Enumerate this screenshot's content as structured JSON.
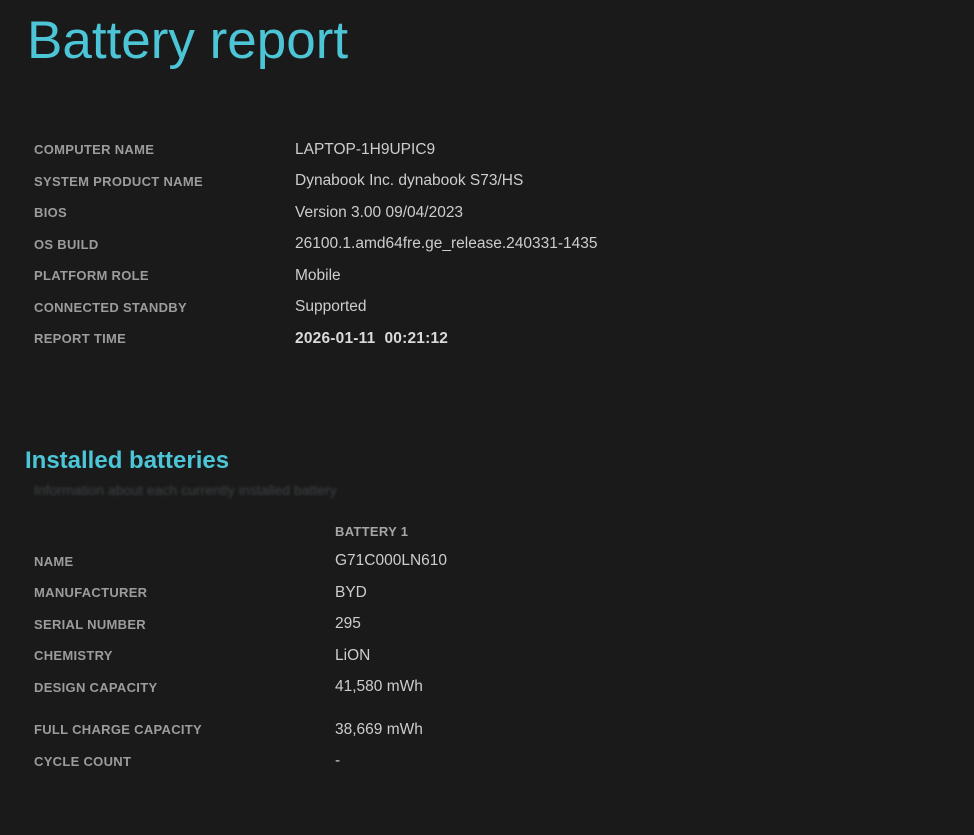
{
  "page": {
    "title": "Battery report",
    "accent_color": "#4cc6d7",
    "background_color": "#1a1a1a"
  },
  "system_info": {
    "rows": [
      {
        "label": "COMPUTER NAME",
        "value": "LAPTOP-1H9UPIC9"
      },
      {
        "label": "SYSTEM PRODUCT NAME",
        "value": "Dynabook Inc. dynabook S73/HS"
      },
      {
        "label": "BIOS",
        "value": "Version 3.00 09/04/2023"
      },
      {
        "label": "OS BUILD",
        "value": "26100.1.amd64fre.ge_release.240331-1435"
      },
      {
        "label": "PLATFORM ROLE",
        "value": "Mobile"
      },
      {
        "label": "CONNECTED STANDBY",
        "value": "Supported"
      },
      {
        "label": "REPORT TIME",
        "value": "2026-01-11  00:21:12"
      }
    ]
  },
  "installed_batteries": {
    "heading": "Installed batteries",
    "subtitle": "Information about each currently installed battery",
    "column_header": "BATTERY 1",
    "rows": [
      {
        "label": "NAME",
        "value": "G71C000LN610"
      },
      {
        "label": "MANUFACTURER",
        "value": "BYD"
      },
      {
        "label": "SERIAL NUMBER",
        "value": "295"
      },
      {
        "label": "CHEMISTRY",
        "value": "LiON"
      },
      {
        "label": "DESIGN CAPACITY",
        "value": "41,580 mWh"
      },
      {
        "label": "FULL CHARGE CAPACITY",
        "value": "38,669 mWh"
      },
      {
        "label": "CYCLE COUNT",
        "value": "-"
      }
    ]
  }
}
